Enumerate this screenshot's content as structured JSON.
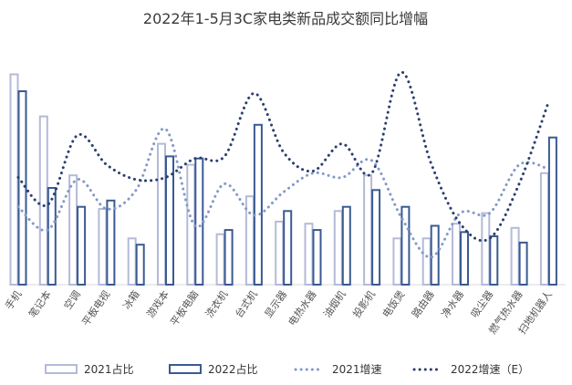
{
  "chart_data": {
    "type": "bar",
    "title": "2022年1-5月3C家电类新品成交额同比增幅",
    "categories": [
      "手机",
      "笔记本",
      "空调",
      "平板电视",
      "冰箱",
      "游戏本",
      "平板电脑",
      "洗衣机",
      "台式机",
      "显示器",
      "电热水器",
      "油烟机",
      "投影机",
      "电饭煲",
      "路由器",
      "净水器",
      "吸尘器",
      "燃气热水器",
      "扫地机器人"
    ],
    "series": [
      {
        "name": "2021占比",
        "kind": "bar",
        "color": "#b4bad8",
        "values": [
          100,
          80,
          52,
          36,
          22,
          67,
          57,
          24,
          42,
          30,
          29,
          35,
          52,
          22,
          22,
          29,
          34,
          27,
          53
        ]
      },
      {
        "name": "2022占比",
        "kind": "bar",
        "color": "#3a5a92",
        "values": [
          92,
          46,
          37,
          40,
          19,
          61,
          60,
          26,
          76,
          35,
          26,
          37,
          45,
          37,
          28,
          25,
          23,
          20,
          70
        ]
      },
      {
        "name": "2021增速",
        "kind": "dotted-line",
        "color": "#8499c8",
        "values": [
          37,
          26,
          50,
          36,
          45,
          74,
          28,
          48,
          33,
          44,
          53,
          51,
          59,
          32,
          13,
          34,
          34,
          57,
          55
        ]
      },
      {
        "name": "2022增速（E）",
        "kind": "dotted-line",
        "color": "#2a3f6e",
        "values": [
          51,
          38,
          71,
          57,
          50,
          51,
          60,
          61,
          91,
          63,
          54,
          67,
          53,
          101,
          58,
          29,
          22,
          48,
          87
        ]
      }
    ],
    "ylim": [
      0,
      105
    ],
    "grid": false,
    "legend_position": "bottom"
  }
}
